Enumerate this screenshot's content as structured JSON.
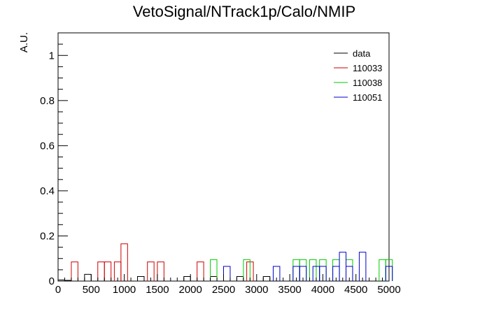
{
  "chart_data": {
    "type": "histogram",
    "title": "VetoSignal/NTrack1p/Calo/NMIP",
    "xlabel": "",
    "ylabel": "A.U.",
    "xlim": [
      0,
      5000
    ],
    "ylim": [
      0,
      1.1
    ],
    "bin_width": 100,
    "x_ticks": [
      0,
      500,
      1000,
      1500,
      2000,
      2500,
      3000,
      3500,
      4000,
      4500,
      5000
    ],
    "y_ticks": [
      0,
      0.2,
      0.4,
      0.6,
      0.8,
      1
    ],
    "grid": false,
    "legend_position": "top-right",
    "series": [
      {
        "name": "data",
        "color": "#000000",
        "bins": [
          {
            "x": 0,
            "y": 0.005
          },
          {
            "x": 100,
            "y": 0.003
          },
          {
            "x": 400,
            "y": 0.03
          },
          {
            "x": 1200,
            "y": 0.02
          },
          {
            "x": 1900,
            "y": 0.02
          },
          {
            "x": 2300,
            "y": 0.02
          },
          {
            "x": 2700,
            "y": 0.02
          },
          {
            "x": 3100,
            "y": 0.02
          }
        ]
      },
      {
        "name": "110033",
        "color": "#cc0000",
        "bins": [
          {
            "x": 200,
            "y": 0.085
          },
          {
            "x": 600,
            "y": 0.085
          },
          {
            "x": 700,
            "y": 0.085
          },
          {
            "x": 850,
            "y": 0.085
          },
          {
            "x": 950,
            "y": 0.165
          },
          {
            "x": 1350,
            "y": 0.085
          },
          {
            "x": 1500,
            "y": 0.085
          },
          {
            "x": 2100,
            "y": 0.085
          },
          {
            "x": 2850,
            "y": 0.085
          }
        ]
      },
      {
        "name": "110038",
        "color": "#00cc00",
        "bins": [
          {
            "x": 2300,
            "y": 0.095
          },
          {
            "x": 2800,
            "y": 0.095
          },
          {
            "x": 3550,
            "y": 0.095
          },
          {
            "x": 3650,
            "y": 0.095
          },
          {
            "x": 3800,
            "y": 0.095
          },
          {
            "x": 3950,
            "y": 0.095
          },
          {
            "x": 4150,
            "y": 0.095
          },
          {
            "x": 4350,
            "y": 0.095
          },
          {
            "x": 4850,
            "y": 0.095
          },
          {
            "x": 4950,
            "y": 0.095
          }
        ]
      },
      {
        "name": "110051",
        "color": "#0000cc",
        "bins": [
          {
            "x": 2500,
            "y": 0.065
          },
          {
            "x": 3250,
            "y": 0.065
          },
          {
            "x": 3550,
            "y": 0.065
          },
          {
            "x": 3650,
            "y": 0.065
          },
          {
            "x": 3850,
            "y": 0.065
          },
          {
            "x": 3950,
            "y": 0.065
          },
          {
            "x": 4150,
            "y": 0.065
          },
          {
            "x": 4250,
            "y": 0.128
          },
          {
            "x": 4350,
            "y": 0.065
          },
          {
            "x": 4550,
            "y": 0.128
          },
          {
            "x": 4950,
            "y": 0.065
          }
        ]
      }
    ]
  }
}
